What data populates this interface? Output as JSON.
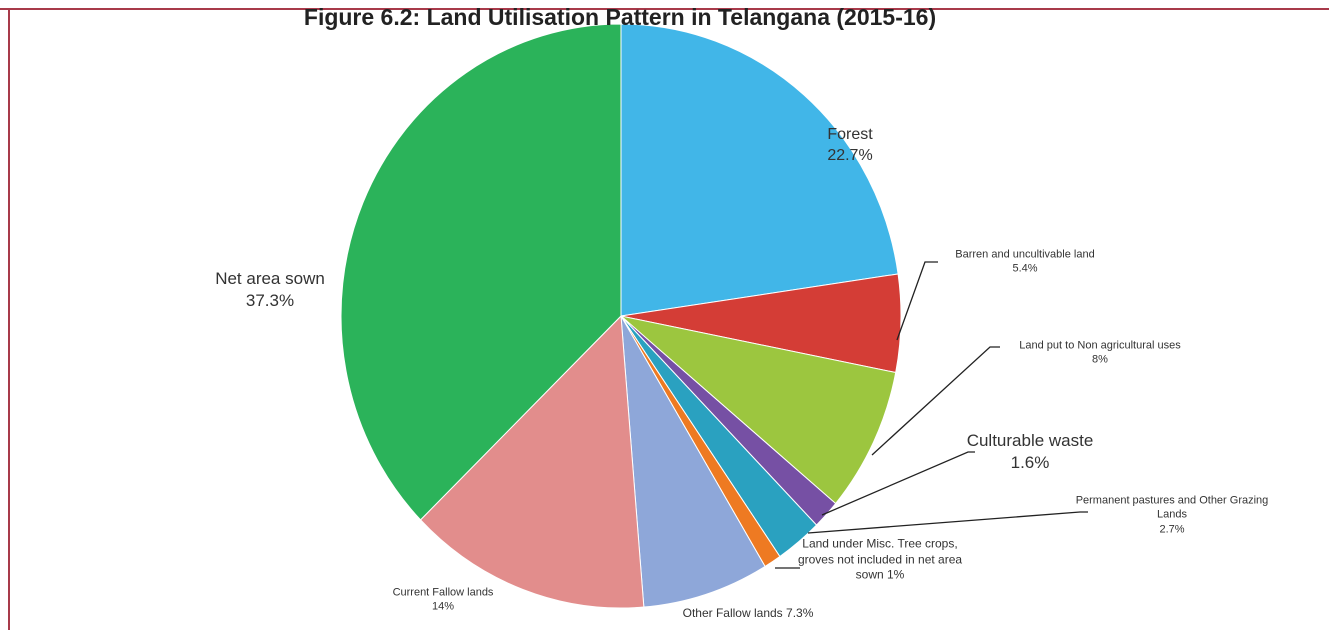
{
  "chart_data": {
    "type": "pie",
    "title": "Figure 6.2: Land Utilisation Pattern in Telangana (2015-16)",
    "categories": [
      "Forest",
      "Barren and uncultivable land",
      "Land put to Non agricultural uses",
      "Culturable waste",
      "Permanent pastures and Other Grazing Lands",
      "Land under Misc. Tree crops, groves not included in net area sown",
      "Other Fallow lands",
      "Current Fallow lands",
      "Net area sown"
    ],
    "values": [
      22.7,
      5.4,
      8,
      1.6,
      2.7,
      1,
      7.3,
      14,
      37.3
    ],
    "value_labels": [
      "22.7%",
      "5.4%",
      "8%",
      "1.6%",
      "2.7%",
      "1%",
      "7.3%",
      "14%",
      "37.3%"
    ],
    "colors": [
      "#41b6e8",
      "#d43d36",
      "#9cc63f",
      "#7650a4",
      "#2aa1c0",
      "#ee7a22",
      "#8ea7d9",
      "#e28d8c",
      "#2bb35a"
    ]
  }
}
